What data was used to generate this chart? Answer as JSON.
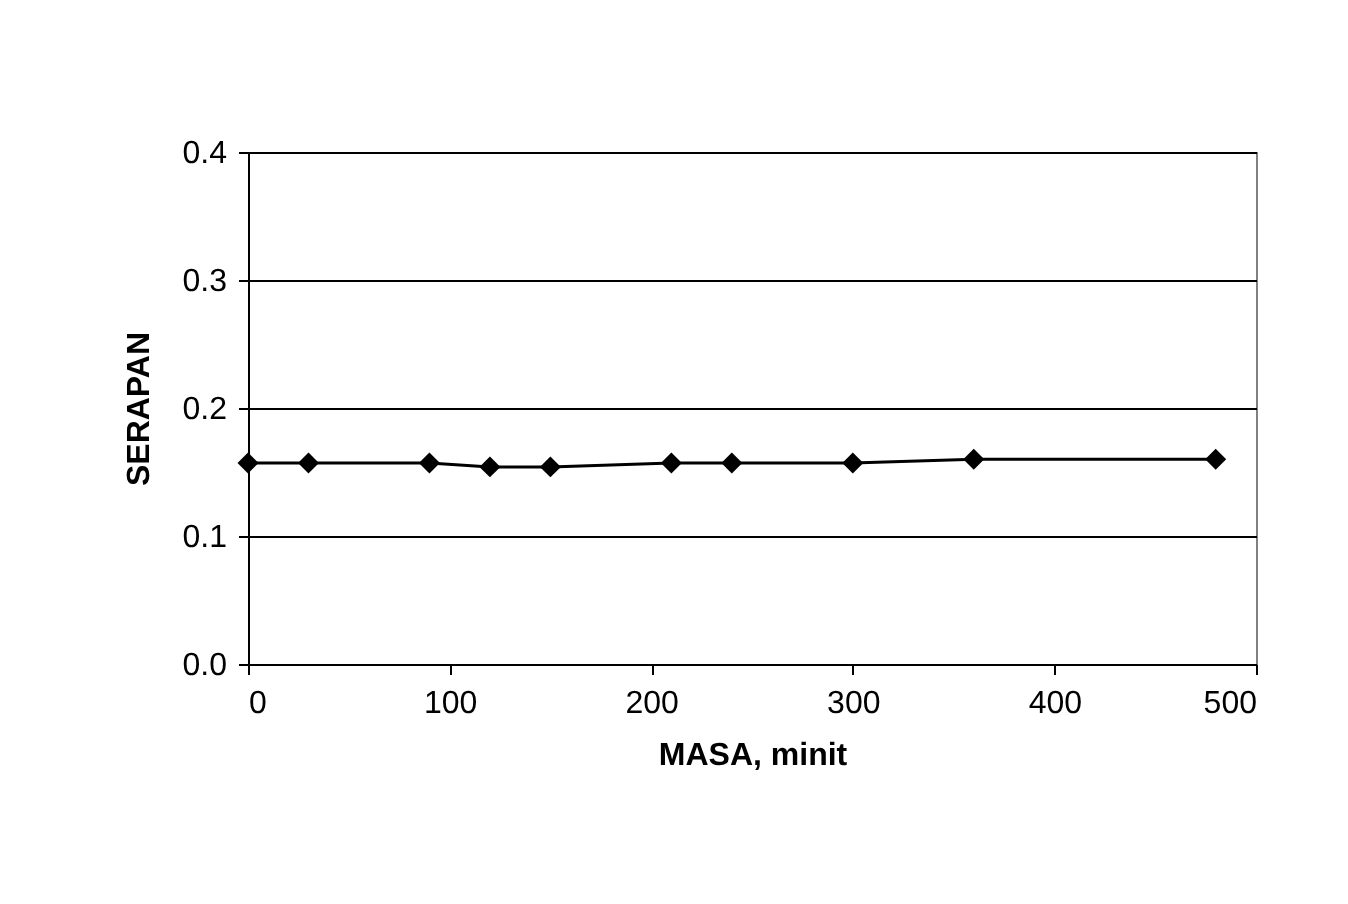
{
  "chart_data": {
    "type": "line",
    "xlabel": "MASA, minit",
    "ylabel": "SERAPAN",
    "x": [
      0,
      30,
      90,
      120,
      150,
      210,
      240,
      300,
      360,
      480
    ],
    "series": [
      {
        "color": "#000000",
        "values": [
          0.157,
          0.157,
          0.157,
          0.154,
          0.154,
          0.157,
          0.157,
          0.157,
          0.16,
          0.16
        ]
      }
    ],
    "xlim": [
      0,
      500
    ],
    "xticks": [
      0,
      100,
      200,
      300,
      400,
      500
    ],
    "ylim": [
      0,
      0.4
    ],
    "yticks": [
      {
        "value": 0,
        "label": "0.0"
      },
      {
        "value": 0.1,
        "label": "0.1"
      },
      {
        "value": 0.2,
        "label": "0.2"
      },
      {
        "value": 0.3,
        "label": "0.3"
      },
      {
        "value": 0.4,
        "label": "0.4"
      }
    ],
    "grid": "y",
    "marker": "diamond",
    "line_style": "solid"
  }
}
